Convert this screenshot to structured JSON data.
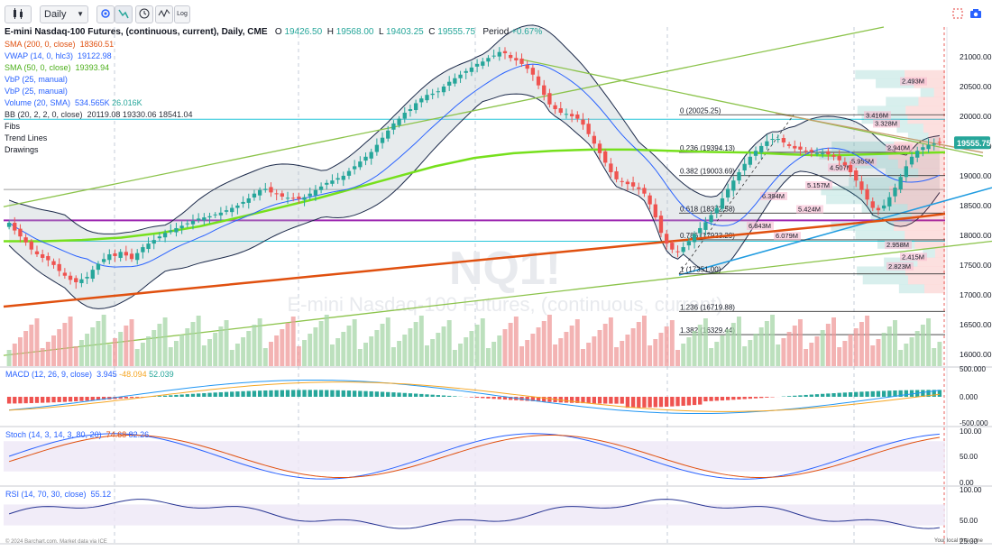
{
  "toolbar": {
    "chart_type_icon": "candles-icon",
    "interval": "Daily",
    "settings_icon": "gear-icon",
    "log_label": "Log"
  },
  "header": {
    "title": "E-mini Nasdaq-100 Futures, (continuous, current), Daily, CME",
    "o_label": "O",
    "o": "19426.50",
    "h_label": "H",
    "h": "19568.00",
    "l_label": "L",
    "l": "19403.25",
    "c_label": "C",
    "c": "19555.75",
    "period_label": "Period",
    "period": "+0.67%"
  },
  "indicators": {
    "sma200": {
      "label": "SMA (200, 0, close)",
      "value": "18360.51",
      "color": "#e0500f"
    },
    "vwap": {
      "label": "VWAP (14, 0, hlc3)",
      "value": "19122.98",
      "color": "#2962ff"
    },
    "sma50": {
      "label": "SMA (50, 0, close)",
      "value": "19393.94",
      "color": "#4caf1a"
    },
    "vbp1": {
      "label": "VbP (25, manual)",
      "color": "#2962ff"
    },
    "vbp2": {
      "label": "VbP (25, manual)",
      "color": "#2962ff"
    },
    "volume": {
      "label": "Volume (20, SMA)",
      "value1": "534.565K",
      "value2": "26.016K",
      "color": "#2962ff"
    },
    "bb": {
      "label": "BB (20, 2, 2, 0, close)",
      "values": "20119.08 19330.06 18541.04"
    },
    "fibs": "Fibs",
    "trendlines": "Trend Lines",
    "drawings": "Drawings"
  },
  "watermark": {
    "symbol": "NQ1!",
    "name": "E-mini Nasdaq-100 Futures, (continuous, current)"
  },
  "fib_levels": [
    {
      "label": "0 (20025.25)",
      "price": 20025.25
    },
    {
      "label": "0.236 (19394.13)",
      "price": 19394.13
    },
    {
      "label": "0.382 (19003.69)",
      "price": 19003.69
    },
    {
      "label": "0.618 (18372.58)",
      "price": 18372.58
    },
    {
      "label": "0.786 (17923.29)",
      "price": 17923.29
    },
    {
      "label": "1 (17351.00)",
      "price": 17351.0
    },
    {
      "label": "1.236 (16719.88)",
      "price": 16719.88
    },
    {
      "label": "1.382 (16329.44)",
      "price": 16329.44
    }
  ],
  "vbp_labels": [
    "2.493M",
    "3.416M",
    "3.328M",
    "2.940M",
    "5.955M",
    "4.507M",
    "5.157M",
    "6.394M",
    "5.424M",
    "6.843M",
    "6.079M",
    "2.958M",
    "2.415M",
    "2.823M"
  ],
  "price_axis": {
    "ticks": [
      "21000.00",
      "20500.00",
      "20000.00",
      "19500.00",
      "19000.00",
      "18500.00",
      "18000.00",
      "17500.00",
      "17000.00",
      "16500.00",
      "16000.00"
    ],
    "last_price": "19555.75",
    "last_color": "#26a69a"
  },
  "macd": {
    "label": "MACD (12, 26, 9, close)",
    "v1": "3.945",
    "v2": "-48.094",
    "v3": "52.039",
    "ticks": [
      "500.000",
      "0.000",
      "-500.000"
    ]
  },
  "stoch": {
    "label": "Stoch (14, 3, 14, 3, 80, 20)",
    "v1": "74.68",
    "v2": "82.26",
    "ticks": [
      "100.00",
      "50.00",
      "0.00"
    ]
  },
  "rsi": {
    "label": "RSI (14, 70, 30, close)",
    "value": "55.12",
    "ticks": [
      "100.00",
      "50.00",
      "25.00"
    ]
  },
  "footer": {
    "copyright": "© 2024 Barchart.com. Market data via ICE",
    "timezone": "Your local time zone"
  },
  "chart_data": {
    "type": "candlestick",
    "title": "E-mini Nasdaq-100 Futures, (continuous, current), Daily, CME",
    "ylim": [
      15800,
      21500
    ],
    "closes": [
      18210,
      18080,
      17980,
      17880,
      17760,
      17680,
      17620,
      17580,
      17500,
      17400,
      17320,
      17250,
      17210,
      17260,
      17300,
      17420,
      17520,
      17600,
      17680,
      17650,
      17720,
      17660,
      17600,
      17700,
      17800,
      17860,
      17920,
      17980,
      18040,
      18080,
      18120,
      18160,
      18200,
      18240,
      18280,
      18300,
      18320,
      18350,
      18380,
      18420,
      18460,
      18500,
      18560,
      18620,
      18700,
      18760,
      18780,
      18720,
      18690,
      18650,
      18630,
      18620,
      18610,
      18640,
      18700,
      18760,
      18820,
      18880,
      18920,
      18960,
      19000,
      19080,
      19160,
      19240,
      19320,
      19400,
      19520,
      19640,
      19760,
      19880,
      19960,
      20060,
      20120,
      20220,
      20300,
      20360,
      20380,
      20420,
      20500,
      20580,
      20640,
      20700,
      20760,
      20820,
      20880,
      20920,
      20980,
      21020,
      21080,
      21060,
      20980,
      20940,
      20880,
      20800,
      20700,
      20520,
      20360,
      20200,
      20120,
      20060,
      20040,
      20000,
      19960,
      19860,
      19700,
      19540,
      19380,
      19220,
      19060,
      18940,
      18900,
      18860,
      18820,
      18780,
      18700,
      18520,
      18300,
      18040,
      17860,
      17760,
      17720,
      17800,
      17900,
      18020,
      18120,
      18220,
      18340,
      18460,
      18620,
      18780,
      18920,
      19060,
      19200,
      19320,
      19420,
      19500,
      19580,
      19620,
      19620,
      19560,
      19500,
      19460,
      19440,
      19420,
      19400,
      19380,
      19380,
      19360,
      19320,
      19260,
      19180,
      19060,
      18920,
      18760,
      18600,
      18460,
      18420,
      18500,
      18640,
      18800,
      18980,
      19160,
      19320,
      19420,
      19480,
      19520,
      19540,
      19556
    ],
    "sma200": [
      16800,
      16850,
      16900,
      16950,
      17000,
      17050,
      17100,
      17150,
      17200,
      17250,
      17300,
      17350,
      17400,
      17450,
      17500,
      17550,
      17600,
      17650,
      17700,
      17750,
      17800,
      17850,
      17900,
      17950,
      18000,
      18050,
      18100,
      18150,
      18200,
      18250,
      18300,
      18360
    ],
    "sma50": [
      17900,
      17900,
      17920,
      17960,
      18040,
      18150,
      18300,
      18460,
      18620,
      18800,
      18980,
      19160,
      19300,
      19380,
      19420,
      19440,
      19440,
      19420,
      19400,
      19390,
      19360,
      19340,
      19360,
      19380,
      19394
    ],
    "volume_description": "daily volume bars coloured by candle direction",
    "macd": {
      "range": [
        -550,
        550
      ]
    },
    "stoch": {
      "range": [
        0,
        100
      ],
      "bands": [
        20,
        80
      ]
    },
    "rsi": {
      "range": [
        0,
        100
      ],
      "bands": [
        30,
        70
      ]
    }
  }
}
